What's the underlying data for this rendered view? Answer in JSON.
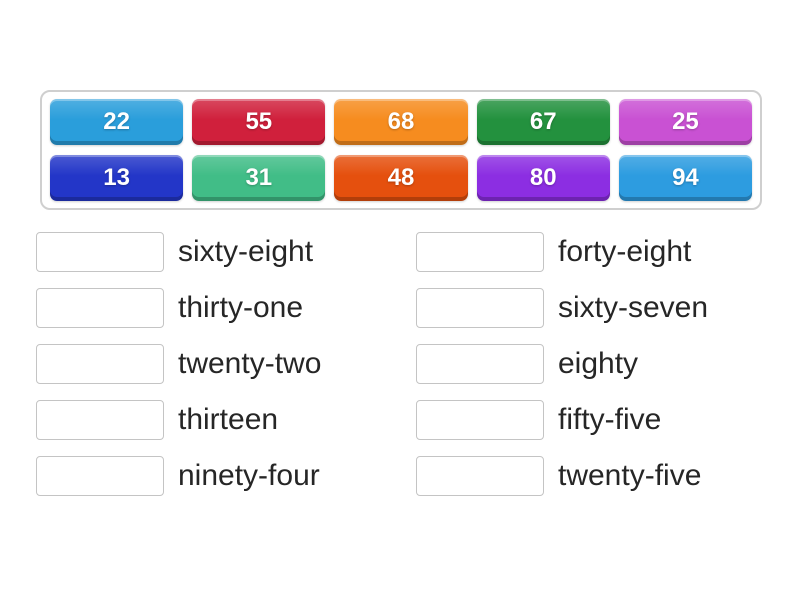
{
  "page": {
    "background": "#ffffff"
  },
  "tray": {
    "border_color": "#cfcfcf",
    "background": "#ffffff",
    "rows": [
      {
        "tiles": [
          {
            "label": "22",
            "color": "#2a9edb"
          },
          {
            "label": "55",
            "color": "#d0203c"
          },
          {
            "label": "68",
            "color": "#f68c1f"
          },
          {
            "label": "67",
            "color": "#23913e"
          },
          {
            "label": "25",
            "color": "#c951d3"
          }
        ]
      },
      {
        "tiles": [
          {
            "label": "13",
            "color": "#2336c8"
          },
          {
            "label": "31",
            "color": "#41bd87"
          },
          {
            "label": "48",
            "color": "#e5500e"
          },
          {
            "label": "80",
            "color": "#8c2ee2"
          },
          {
            "label": "94",
            "color": "#2d9ce0"
          }
        ]
      }
    ]
  },
  "matches": {
    "left": [
      {
        "slot_value": "",
        "word": "sixty-eight"
      },
      {
        "slot_value": "",
        "word": "thirty-one"
      },
      {
        "slot_value": "",
        "word": "twenty-two"
      },
      {
        "slot_value": "",
        "word": "thirteen"
      },
      {
        "slot_value": "",
        "word": "ninety-four"
      }
    ],
    "right": [
      {
        "slot_value": "",
        "word": "forty-eight"
      },
      {
        "slot_value": "",
        "word": "sixty-seven"
      },
      {
        "slot_value": "",
        "word": "eighty"
      },
      {
        "slot_value": "",
        "word": "fifty-five"
      },
      {
        "slot_value": "",
        "word": "twenty-five"
      }
    ]
  },
  "colors": {
    "word_text": "#262626",
    "slot_border": "#c4c4c4"
  }
}
